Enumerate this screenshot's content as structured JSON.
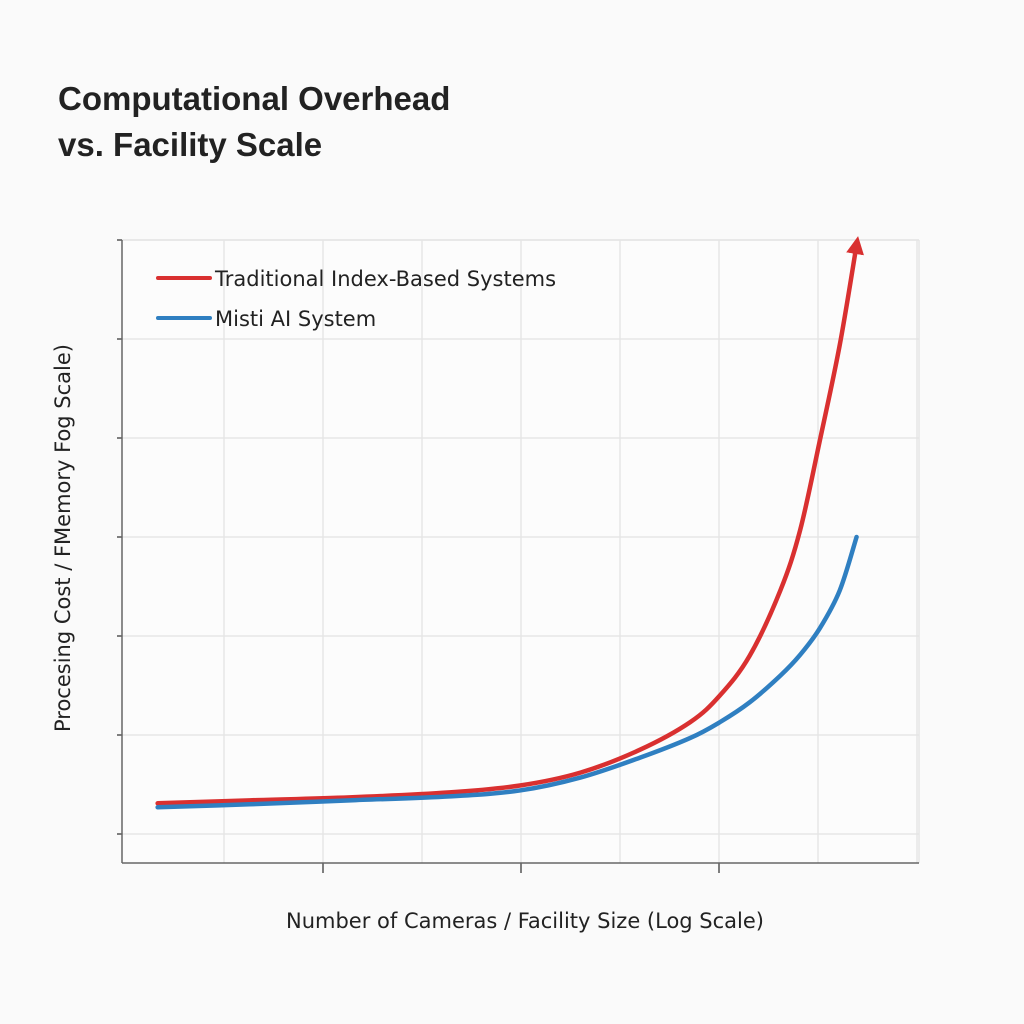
{
  "chart_data": {
    "type": "line",
    "title_line1": "Computational Overhead",
    "title_line2": "vs. Facility Scale",
    "xlabel": "Number of Cameras / Facility Size (Log Scale)",
    "ylabel": "Procesing Cost / FMemory Fog Scale)",
    "x_scale": "log",
    "y_scale": "log",
    "tick_labels_shown": false,
    "xlim": [
      0,
      8
    ],
    "ylim": [
      -0.3,
      6
    ],
    "grid": true,
    "legend_placement": "top-left",
    "series": [
      {
        "name": "Traditional Index-Based Systems",
        "color": "#d93030",
        "end_marker": "arrow",
        "x": [
          0.36,
          1.29,
          2.3,
          3.31,
          4.02,
          4.63,
          5.23,
          5.74,
          6.04,
          6.34,
          6.65,
          6.85,
          7.05,
          7.25,
          7.42
        ],
        "y": [
          0.31,
          0.34,
          0.37,
          0.42,
          0.49,
          0.62,
          0.85,
          1.13,
          1.4,
          1.8,
          2.46,
          3.07,
          3.98,
          4.94,
          5.95
        ]
      },
      {
        "name": "Misti AI System",
        "color": "#2f7fc1",
        "x": [
          0.36,
          1.29,
          2.3,
          3.31,
          4.02,
          4.63,
          5.23,
          5.74,
          6.04,
          6.34,
          6.65,
          6.85,
          7.05,
          7.25,
          7.42
        ],
        "y": [
          0.27,
          0.3,
          0.34,
          0.38,
          0.44,
          0.57,
          0.77,
          0.97,
          1.13,
          1.33,
          1.6,
          1.81,
          2.08,
          2.46,
          3.0
        ]
      }
    ]
  }
}
